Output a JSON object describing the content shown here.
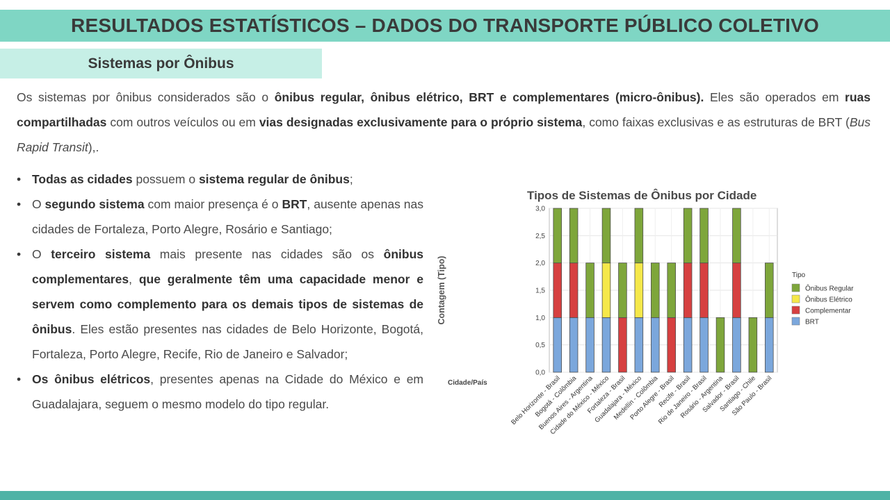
{
  "header": {
    "title": "RESULTADOS ESTATÍSTICOS – DADOS DO TRANSPORTE PÚBLICO COLETIVO"
  },
  "section": {
    "title": "Sistemas por Ônibus"
  },
  "intro": {
    "t1": "Os sistemas por ônibus considerados são o ",
    "b1": "ônibus regular, ônibus elétrico, BRT e complementares (micro-ônibus).",
    "t2": " Eles são operados em ",
    "b2": "ruas compartilhadas",
    "t3": " com outros veículos ou em ",
    "b3": "vias designadas exclusivamente para o próprio sistema",
    "t4": ", como faixas exclusivas e as estruturas de BRT (",
    "i1": "Bus Rapid Transit",
    "t5": "),."
  },
  "bullets": {
    "bullet_char": "•",
    "b1": {
      "s1": "Todas as cidades",
      "t1": " possuem o ",
      "s2": "sistema regular de ônibus",
      "t2": ";"
    },
    "b2": {
      "t1": "O ",
      "s1": "segundo sistema",
      "t2": " com maior presença é o ",
      "s2": "BRT",
      "t3": ", ausente apenas nas cidades de Fortaleza, Porto Alegre, Rosário e Santiago;"
    },
    "b3": {
      "t1": "O ",
      "s1": "terceiro sistema",
      "t2": " mais presente nas cidades são os ",
      "s2": "ônibus complementares",
      "t3": ", ",
      "s3": "que geralmente têm uma capacidade menor e servem como complemento para os demais tipos de sistemas de ônibus",
      "t4": ". Eles estão presentes nas cidades de Belo Horizonte, Bogotá, Fortaleza, Porto Alegre, Recife, Rio de Janeiro e Salvador;"
    },
    "b4": {
      "s1": "Os ônibus elétricos",
      "t1": ", presentes apenas na Cidade do México e em Guadalajara, seguem o mesmo modelo do tipo regular."
    }
  },
  "chart_data": {
    "type": "bar",
    "stacked": true,
    "title": "Tipos de Sistemas de Ônibus por Cidade",
    "xlabel": "Cidade/País",
    "ylabel": "Contagem (Tipo)",
    "ylim": [
      0,
      3
    ],
    "yticks": [
      "0,0",
      "0,5",
      "1,0",
      "1,5",
      "2,0",
      "2,5",
      "3,0"
    ],
    "grid": true,
    "legend_title": "Tipo",
    "legend_position": "right",
    "categories": [
      "Belo Horizonte - Brasil",
      "Bogotá - Colômbia",
      "Buenos Aires - Argentina",
      "Cidade do México - México",
      "Fortaleza - Brasil",
      "Guadalajara - México",
      "Medellín - Colômbia",
      "Porto Alegre - Brasil",
      "Recife - Brasil",
      "Rio de Janeiro - Brasil",
      "Rosário - Argentina",
      "Salvador - Brasil",
      "Santiago - Chile",
      "São Paulo - Brasil"
    ],
    "series": [
      {
        "name": "BRT",
        "color": "#7ba7dc",
        "values": [
          1,
          1,
          1,
          1,
          0,
          1,
          1,
          0,
          1,
          1,
          0,
          1,
          0,
          1
        ]
      },
      {
        "name": "Complementar",
        "color": "#d64040",
        "values": [
          1,
          1,
          0,
          0,
          1,
          0,
          0,
          1,
          1,
          1,
          0,
          1,
          0,
          0
        ]
      },
      {
        "name": "Ônibus Elétrico",
        "color": "#f5e84a",
        "values": [
          0,
          0,
          0,
          1,
          0,
          1,
          0,
          0,
          0,
          0,
          0,
          0,
          0,
          0
        ]
      },
      {
        "name": "Ônibus Regular",
        "color": "#7ea63b",
        "values": [
          1,
          1,
          1,
          1,
          1,
          1,
          1,
          1,
          1,
          1,
          1,
          1,
          1,
          1
        ]
      }
    ],
    "legend_order": [
      "Ônibus Regular",
      "Ônibus Elétrico",
      "Complementar",
      "BRT"
    ]
  }
}
